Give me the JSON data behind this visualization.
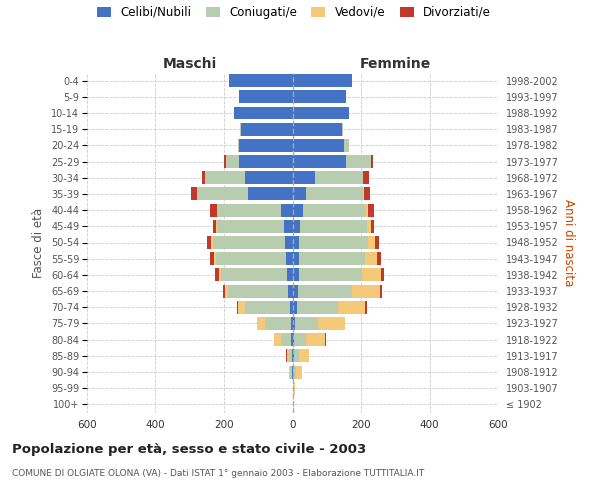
{
  "age_groups": [
    "100+",
    "95-99",
    "90-94",
    "85-89",
    "80-84",
    "75-79",
    "70-74",
    "65-69",
    "60-64",
    "55-59",
    "50-54",
    "45-49",
    "40-44",
    "35-39",
    "30-34",
    "25-29",
    "20-24",
    "15-19",
    "10-14",
    "5-9",
    "0-4"
  ],
  "birth_years": [
    "≤ 1902",
    "1903-1907",
    "1908-1912",
    "1913-1917",
    "1918-1922",
    "1923-1927",
    "1928-1932",
    "1933-1937",
    "1938-1942",
    "1943-1947",
    "1948-1952",
    "1953-1957",
    "1958-1962",
    "1963-1967",
    "1968-1972",
    "1973-1977",
    "1978-1982",
    "1983-1987",
    "1988-1992",
    "1993-1997",
    "1998-2002"
  ],
  "male": {
    "celibe": [
      0,
      0,
      2,
      2,
      3,
      5,
      8,
      12,
      15,
      18,
      22,
      25,
      35,
      130,
      140,
      155,
      155,
      150,
      170,
      155,
      185
    ],
    "coniugato": [
      0,
      0,
      5,
      8,
      30,
      75,
      130,
      175,
      195,
      205,
      210,
      195,
      185,
      150,
      115,
      40,
      5,
      2,
      0,
      0,
      0
    ],
    "vedovo": [
      0,
      0,
      3,
      5,
      20,
      25,
      20,
      10,
      5,
      5,
      5,
      3,
      0,
      0,
      0,
      0,
      0,
      0,
      0,
      0,
      0
    ],
    "divorziato": [
      0,
      0,
      0,
      3,
      0,
      0,
      5,
      5,
      12,
      12,
      12,
      10,
      22,
      15,
      8,
      5,
      0,
      0,
      0,
      0,
      0
    ]
  },
  "female": {
    "nubile": [
      0,
      0,
      2,
      3,
      5,
      8,
      12,
      15,
      18,
      18,
      20,
      22,
      30,
      40,
      65,
      155,
      150,
      145,
      165,
      155,
      175
    ],
    "coniugata": [
      0,
      2,
      8,
      15,
      35,
      65,
      120,
      160,
      185,
      195,
      200,
      195,
      185,
      165,
      140,
      75,
      15,
      3,
      0,
      0,
      0
    ],
    "vedova": [
      0,
      5,
      18,
      30,
      55,
      80,
      80,
      80,
      55,
      35,
      20,
      12,
      5,
      3,
      2,
      0,
      0,
      0,
      0,
      0,
      0
    ],
    "divorziata": [
      0,
      0,
      0,
      0,
      2,
      0,
      5,
      5,
      10,
      10,
      12,
      10,
      18,
      18,
      15,
      5,
      0,
      0,
      0,
      0,
      0
    ]
  },
  "colors": {
    "celibe": "#4472C4",
    "coniugato": "#B8CCB0",
    "vedovo": "#F5C97A",
    "divorziato": "#C0392B"
  },
  "xlim": 600,
  "title": "Popolazione per età, sesso e stato civile - 2003",
  "subtitle": "COMUNE DI OLGIATE OLONA (VA) - Dati ISTAT 1° gennaio 2003 - Elaborazione TUTTITALIA.IT",
  "ylabel_left": "Fasce di età",
  "ylabel_right": "Anni di nascita",
  "legend_labels": [
    "Celibi/Nubili",
    "Coniugati/e",
    "Vedovi/e",
    "Divorziati/e"
  ],
  "background_color": "#ffffff",
  "grid_color": "#cccccc"
}
